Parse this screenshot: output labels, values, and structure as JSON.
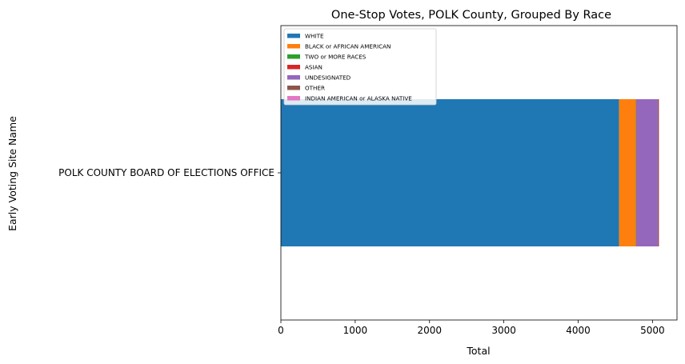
{
  "chart_data": {
    "type": "bar",
    "orientation": "horizontal",
    "stacked": true,
    "title": "One-Stop Votes, POLK County, Grouped By Race",
    "xlabel": "Total",
    "ylabel": "Early Voting Site Name",
    "categories": [
      "POLK COUNTY BOARD OF ELECTIONS OFFICE"
    ],
    "xlim": [
      0,
      5330
    ],
    "xticks": [
      0,
      1000,
      2000,
      3000,
      4000,
      5000
    ],
    "grid": false,
    "legend_position": "upper-left",
    "series": [
      {
        "name": "WHITE",
        "values": [
          4550
        ],
        "color": "#1f77b4"
      },
      {
        "name": "BLACK or AFRICAN AMERICAN",
        "values": [
          225
        ],
        "color": "#ff7f0e"
      },
      {
        "name": "TWO or MORE RACES",
        "values": [
          5
        ],
        "color": "#2ca02c"
      },
      {
        "name": "ASIAN",
        "values": [
          5
        ],
        "color": "#d62728"
      },
      {
        "name": "UNDESIGNATED",
        "values": [
          285
        ],
        "color": "#9467bd"
      },
      {
        "name": "OTHER",
        "values": [
          15
        ],
        "color": "#8c564b"
      },
      {
        "name": "INDIAN AMERICAN or ALASKA NATIVE",
        "values": [
          5
        ],
        "color": "#e377c2"
      }
    ]
  }
}
